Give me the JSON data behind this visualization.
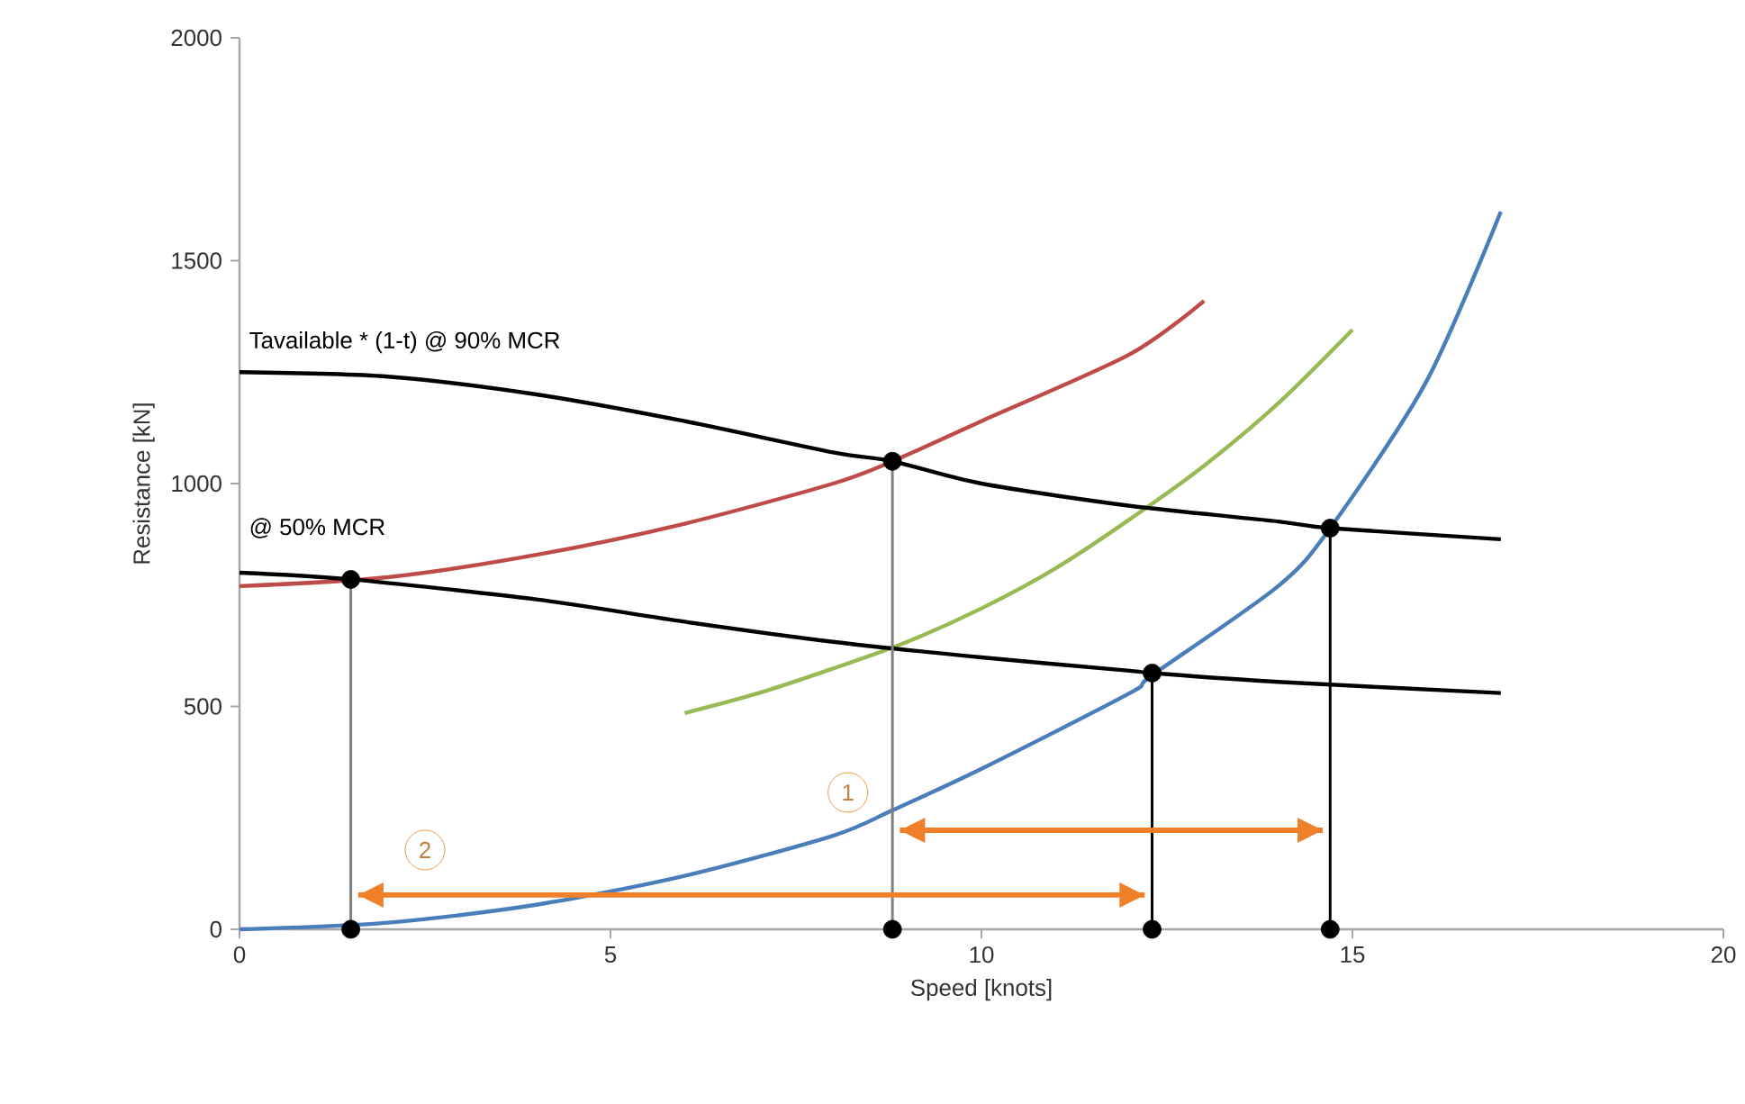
{
  "chart_data": {
    "type": "line",
    "xlabel": "Speed [knots]",
    "ylabel": "Resistance [kN]",
    "xlim": [
      0,
      20
    ],
    "ylim": [
      0,
      2000
    ],
    "xticks": [
      0,
      5,
      10,
      15,
      20
    ],
    "yticks": [
      0,
      500,
      1000,
      1500,
      2000
    ],
    "grid": false,
    "marker": "none",
    "series": [
      {
        "color": "#4a7ebb",
        "x": [
          0,
          2,
          4,
          6,
          8,
          8.8,
          10,
          12,
          12.3,
          14,
          14.7,
          16,
          17
        ],
        "values": [
          0,
          15,
          55,
          120,
          210,
          267,
          360,
          530,
          570,
          770,
          900,
          1230,
          1610
        ]
      },
      {
        "color": "#be4b48",
        "x": [
          0,
          2,
          4,
          6,
          8,
          8.8,
          10,
          12,
          13
        ],
        "values": [
          770,
          790,
          840,
          910,
          1000,
          1050,
          1140,
          1290,
          1410
        ]
      },
      {
        "color": "#98b954",
        "x": [
          6,
          7,
          8,
          9,
          10,
          11,
          12,
          13,
          14,
          15
        ],
        "values": [
          485,
          530,
          585,
          645,
          720,
          810,
          920,
          1040,
          1180,
          1345
        ]
      },
      {
        "color": "#000000",
        "x": [
          0,
          2,
          4,
          6,
          8,
          8.8,
          10,
          12,
          14,
          14.7,
          17
        ],
        "values": [
          1250,
          1240,
          1200,
          1140,
          1070,
          1050,
          1000,
          950,
          915,
          900,
          875
        ]
      },
      {
        "color": "#000000",
        "x": [
          0,
          1.5,
          4,
          6,
          8,
          10,
          12,
          12.3,
          14,
          17
        ],
        "values": [
          800,
          785,
          740,
          690,
          645,
          610,
          580,
          575,
          555,
          530
        ]
      },
      {
        "color": "#7f7f7f",
        "x": [
          1.5,
          1.5
        ],
        "values": [
          0,
          785
        ]
      },
      {
        "color": "#7f7f7f",
        "x": [
          8.8,
          8.8
        ],
        "values": [
          0,
          1050
        ]
      },
      {
        "color": "#000000",
        "x": [
          12.3,
          12.3
        ],
        "values": [
          0,
          575
        ]
      },
      {
        "color": "#000000",
        "x": [
          14.7,
          14.7
        ],
        "values": [
          0,
          900
        ]
      },
      {
        "color": "#f07f2a",
        "x": [
          1.6,
          12.2
        ],
        "values": [
          77,
          77
        ]
      },
      {
        "color": "#f07f2a",
        "x": [
          8.9,
          14.6
        ],
        "values": [
          222,
          222
        ]
      },
      {
        "type": "scatter",
        "marker": "circle",
        "color": "#000000",
        "x": [
          1.5,
          8.8,
          12.3,
          14.7,
          1.5,
          8.8,
          12.3,
          14.7
        ],
        "values": [
          0,
          0,
          0,
          0,
          785,
          1050,
          575,
          900
        ]
      }
    ],
    "annotations": [
      "Tavailable * (1-t)  @ 90% MCR",
      "@ 50% MCR",
      {
        "text": "1",
        "x": 8.2,
        "y": 307
      },
      {
        "text": "2",
        "x": 2.5,
        "y": 178
      }
    ]
  }
}
